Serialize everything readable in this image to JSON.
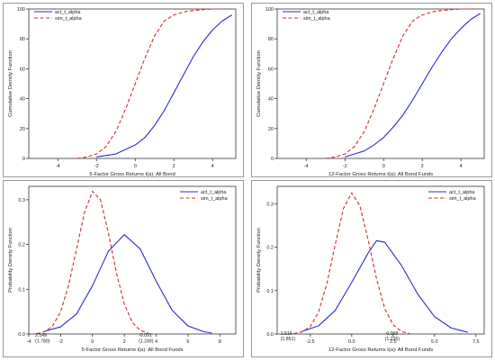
{
  "colors": {
    "act": "#2a2ad4",
    "sim": "#d42a2a",
    "frame": "#333333"
  },
  "chart_data": [
    {
      "type": "line",
      "xlabel": "5-Factor Gross Returns t(a): All Bond",
      "ylabel": "Cumulative Density Function",
      "xlim": [
        -5.5,
        5.2
      ],
      "ylim": [
        0,
        100
      ],
      "xticks": [
        -4,
        -2,
        0,
        2,
        4
      ],
      "yticks": [
        0,
        20,
        40,
        60,
        80,
        100
      ],
      "legend": "top-left",
      "series": [
        {
          "name": "act_t_alpha",
          "style": "solid",
          "x": [
            -2.0,
            -1.5,
            -1.0,
            -0.5,
            0.0,
            0.5,
            1.0,
            1.5,
            2.0,
            2.5,
            3.0,
            3.5,
            4.0,
            4.5,
            5.0
          ],
          "y": [
            1,
            2,
            3,
            6,
            9,
            14,
            22,
            32,
            44,
            56,
            68,
            78,
            86,
            92,
            96
          ]
        },
        {
          "name": "sim_t_alpha",
          "style": "dashed",
          "x": [
            -3.0,
            -2.5,
            -2.0,
            -1.5,
            -1.0,
            -0.5,
            0.0,
            0.5,
            1.0,
            1.5,
            2.0,
            2.5,
            3.0,
            3.5,
            4.0,
            4.5
          ],
          "y": [
            0,
            1,
            3,
            8,
            18,
            33,
            50,
            67,
            82,
            92,
            96,
            98,
            99,
            99.6,
            100,
            100
          ]
        }
      ]
    },
    {
      "type": "line",
      "xlabel": "12-Factor Gross Returns t(a): All Bond Funds",
      "ylabel": "Cumulative Density Function",
      "xlim": [
        -5.5,
        5.2
      ],
      "ylim": [
        0,
        100
      ],
      "xticks": [
        -4,
        -2,
        0,
        2,
        4
      ],
      "yticks": [
        0,
        20,
        40,
        60,
        80,
        100
      ],
      "legend": "top-left",
      "series": [
        {
          "name": "act_t_alpha",
          "style": "solid",
          "x": [
            -2.0,
            -1.5,
            -1.0,
            -0.5,
            0.0,
            0.5,
            1.0,
            1.5,
            2.0,
            2.5,
            3.0,
            3.5,
            4.0,
            4.5,
            5.0
          ],
          "y": [
            1,
            3,
            5,
            9,
            14,
            21,
            29,
            39,
            50,
            61,
            71,
            80,
            87,
            93,
            97
          ]
        },
        {
          "name": "sim_t_alpha",
          "style": "dashed",
          "x": [
            -3.0,
            -2.5,
            -2.0,
            -1.5,
            -1.0,
            -0.5,
            0.0,
            0.5,
            1.0,
            1.5,
            2.0,
            2.5,
            3.0,
            3.5,
            4.0,
            4.5
          ],
          "y": [
            0,
            1,
            3,
            8,
            18,
            33,
            50,
            67,
            82,
            92,
            96,
            98,
            99,
            99.6,
            100,
            100
          ]
        }
      ]
    },
    {
      "type": "line",
      "xlabel": "5-Factor Gross Returns t(a): All Bond Funds",
      "ylabel": "Probability Density Function",
      "xlim": [
        -4,
        9
      ],
      "ylim": [
        0,
        0.33
      ],
      "xticks": [
        -4,
        -2,
        0,
        2,
        4,
        6,
        8
      ],
      "yticks": [
        0.0,
        0.1,
        0.2,
        0.3
      ],
      "legend": "top-right",
      "annotations": [
        {
          "text": "2.149",
          "x": -3.6,
          "y": -0.006,
          "anchor": "start"
        },
        {
          "text": "(1.789)",
          "x": -3.6,
          "y": -0.019,
          "anchor": "start"
        },
        {
          "text": "-0.091",
          "x": 2.9,
          "y": -0.006,
          "anchor": "start"
        },
        {
          "text": "(1.249)",
          "x": 2.9,
          "y": -0.019,
          "anchor": "start"
        }
      ],
      "series": [
        {
          "name": "act_t_alpha",
          "style": "solid",
          "x": [
            -3.0,
            -2.0,
            -1.0,
            0.0,
            1.0,
            2.0,
            3.0,
            4.0,
            5.0,
            6.0,
            7.0,
            7.5
          ],
          "y": [
            0.006,
            0.016,
            0.045,
            0.108,
            0.185,
            0.222,
            0.19,
            0.118,
            0.053,
            0.018,
            0.005,
            0.002
          ]
        },
        {
          "name": "sim_t_alpha",
          "style": "dashed",
          "x": [
            -3.5,
            -3.0,
            -2.5,
            -2.0,
            -1.5,
            -1.0,
            -0.5,
            0.0,
            0.5,
            1.0,
            1.5,
            2.0,
            2.5,
            3.0,
            3.5
          ],
          "y": [
            0.001,
            0.005,
            0.018,
            0.05,
            0.109,
            0.19,
            0.272,
            0.319,
            0.3,
            0.226,
            0.137,
            0.067,
            0.026,
            0.008,
            0.002
          ]
        }
      ]
    },
    {
      "type": "line",
      "xlabel": "12-Factor Gross Returns t(a): All Bond Funds",
      "ylabel": "Probability Density Function",
      "xlim": [
        -4.5,
        8
      ],
      "ylim": [
        0,
        0.34
      ],
      "xticks": [
        -2.5,
        0.0,
        2.5,
        5.0,
        7.5
      ],
      "yticks": [
        0.0,
        0.1,
        0.2,
        0.3
      ],
      "legend": "top-right",
      "annotations": [
        {
          "text": "1.516",
          "x": -4.3,
          "y": -0.002,
          "anchor": "start"
        },
        {
          "text": "(1.851)",
          "x": -4.3,
          "y": -0.015,
          "anchor": "start"
        },
        {
          "text": "-0.068",
          "x": 2.0,
          "y": -0.002,
          "anchor": "start"
        },
        {
          "text": "(1.225)",
          "x": 2.0,
          "y": -0.015,
          "anchor": "start"
        }
      ],
      "series": [
        {
          "name": "act_t_alpha",
          "style": "solid",
          "x": [
            -3.0,
            -2.0,
            -1.0,
            0.0,
            1.0,
            1.5,
            2.0,
            3.0,
            4.0,
            5.0,
            6.0,
            7.0
          ],
          "y": [
            0.006,
            0.019,
            0.054,
            0.119,
            0.187,
            0.215,
            0.211,
            0.158,
            0.091,
            0.04,
            0.014,
            0.004
          ]
        },
        {
          "name": "sim_t_alpha",
          "style": "dashed",
          "x": [
            -3.5,
            -3.0,
            -2.5,
            -2.0,
            -1.5,
            -1.0,
            -0.5,
            0.0,
            0.5,
            1.0,
            1.5,
            2.0,
            2.5,
            3.0,
            3.5
          ],
          "y": [
            0.001,
            0.005,
            0.017,
            0.051,
            0.116,
            0.205,
            0.289,
            0.325,
            0.295,
            0.215,
            0.127,
            0.058,
            0.021,
            0.006,
            0.001
          ]
        }
      ]
    }
  ]
}
